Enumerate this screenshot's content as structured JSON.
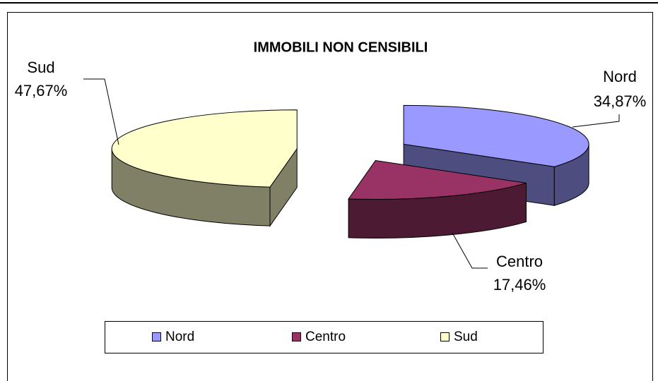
{
  "chart_data": {
    "type": "pie3d",
    "title": "IMMOBILI NON CENSIBILI",
    "categories": [
      "Nord",
      "Centro",
      "Sud"
    ],
    "values": [
      34.87,
      17.46,
      47.67
    ],
    "value_labels": [
      "34,87%",
      "17,46%",
      "47,67%"
    ],
    "colors": [
      "#9999ff",
      "#993366",
      "#ffffcc"
    ],
    "side_colors": [
      "#4d4d80",
      "#4d1a33",
      "#808066"
    ],
    "legend": "bottom"
  }
}
